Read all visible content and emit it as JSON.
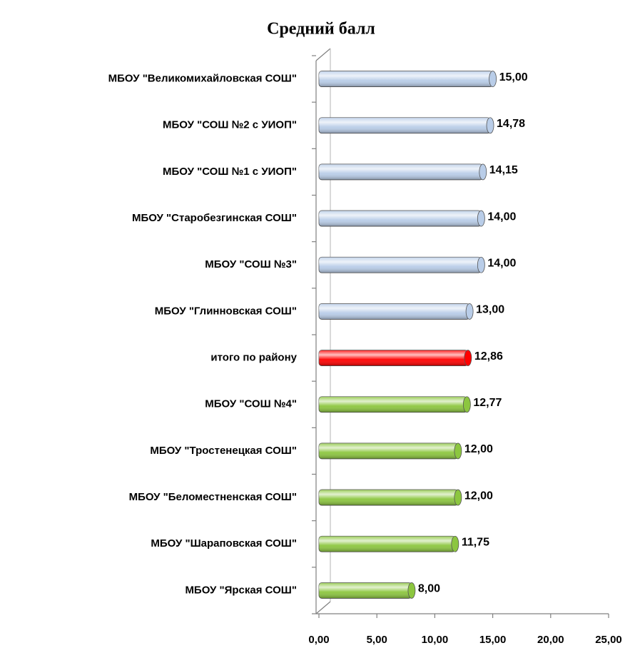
{
  "chart_data": {
    "type": "barh",
    "title": "Средний балл",
    "categories": [
      "МБОУ \"Великомихайловская СОШ\"",
      "МБОУ \"СОШ №2 с УИОП\"",
      "МБОУ \"СОШ №1 с УИОП\"",
      "МБОУ \"Старобезгинская СОШ\"",
      "МБОУ \"СОШ №3\"",
      "МБОУ \"Глинновская СОШ\"",
      "итого по району",
      "МБОУ \"СОШ №4\"",
      "МБОУ \"Тростенецкая СОШ\"",
      "МБОУ \"Беломестненская СОШ\"",
      "МБОУ \"Шараповская  СОШ\"",
      "МБОУ \"Ярская СОШ\""
    ],
    "values": [
      15,
      14.78,
      14.15,
      14,
      14,
      13,
      12.86,
      12.77,
      12,
      12,
      11.75,
      8
    ],
    "value_labels": [
      "15,00",
      "14,78",
      "14,15",
      "14,00",
      "14,00",
      "13,00",
      "12,86",
      "12,77",
      "12,00",
      "12,00",
      "11,75",
      "8,00"
    ],
    "colors": [
      "#b9cde8",
      "#b9cde8",
      "#b9cde8",
      "#b9cde8",
      "#b9cde8",
      "#b9cde8",
      "#ff0000",
      "#8cc63f",
      "#8cc63f",
      "#8cc63f",
      "#8cc63f",
      "#8cc63f"
    ],
    "xlim": [
      0,
      25
    ],
    "xticks": [
      {
        "value": 0,
        "label": "0,00"
      },
      {
        "value": 5,
        "label": "5,00"
      },
      {
        "value": 10,
        "label": "10,00"
      },
      {
        "value": 15,
        "label": "15,00"
      },
      {
        "value": 20,
        "label": "20,00"
      },
      {
        "value": 25,
        "label": "25,00"
      }
    ]
  }
}
